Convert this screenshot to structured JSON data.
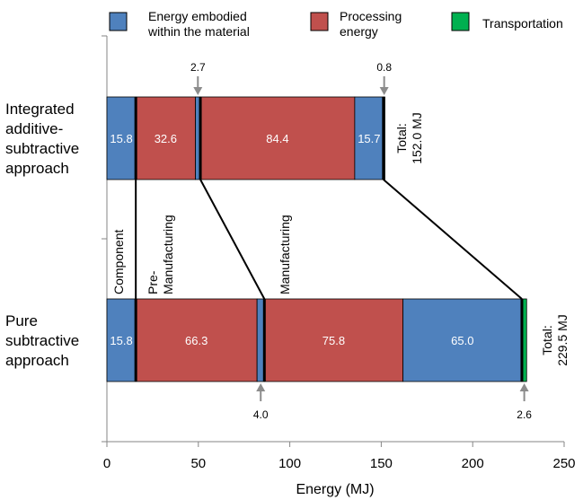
{
  "chart_data": {
    "type": "bar",
    "orientation": "horizontal",
    "stacked": true,
    "xlabel": "Energy (MJ)",
    "xlim": [
      0,
      250
    ],
    "xticks": [
      0,
      50,
      100,
      150,
      200,
      250
    ],
    "grid": false,
    "legend_position": "top",
    "legend": [
      {
        "label": "Energy embodied within the material",
        "lines": [
          "Energy embodied",
          "within the material"
        ],
        "color": "#4f81bd"
      },
      {
        "label": "Processing energy",
        "lines": [
          "Processing",
          "energy"
        ],
        "color": "#c0504d"
      },
      {
        "label": "Transportation",
        "lines": [
          "Transportation"
        ],
        "color": "#00b050"
      }
    ],
    "categories": [
      {
        "name": "Integrated additive-subtractive approach",
        "lines": [
          "Integrated",
          "additive-",
          "subtractive",
          "approach"
        ],
        "total_label": [
          "Total:",
          "152.0 MJ"
        ],
        "segments": [
          {
            "phase": "Component",
            "kind": "material",
            "value": 15.8,
            "label": "15.8"
          },
          {
            "phase": "Pre-Manufacturing",
            "kind": "processing",
            "value": 32.6,
            "label": "32.6"
          },
          {
            "phase": "Pre-Manufacturing",
            "kind": "material",
            "value": 2.7,
            "label": "",
            "callout": "2.7"
          },
          {
            "phase": "Manufacturing",
            "kind": "processing",
            "value": 84.4,
            "label": "84.4"
          },
          {
            "phase": "Manufacturing",
            "kind": "material",
            "value": 15.7,
            "label": "15.7"
          },
          {
            "phase": "Transportation",
            "kind": "transport",
            "value": 0.8,
            "label": "",
            "callout": "0.8"
          }
        ]
      },
      {
        "name": "Pure subtractive approach",
        "lines": [
          "Pure",
          "subtractive",
          "approach"
        ],
        "total_label": [
          "Total:",
          "229.5 MJ"
        ],
        "segments": [
          {
            "phase": "Component",
            "kind": "material",
            "value": 15.8,
            "label": "15.8"
          },
          {
            "phase": "Pre-Manufacturing",
            "kind": "processing",
            "value": 66.3,
            "label": "66.3"
          },
          {
            "phase": "Pre-Manufacturing",
            "kind": "material",
            "value": 4.0,
            "label": "",
            "callout": "4.0"
          },
          {
            "phase": "Manufacturing",
            "kind": "processing",
            "value": 75.8,
            "label": "75.8"
          },
          {
            "phase": "Manufacturing",
            "kind": "material",
            "value": 65.0,
            "label": "65.0"
          },
          {
            "phase": "Transportation",
            "kind": "transport",
            "value": 2.6,
            "label": "",
            "callout": "2.6"
          }
        ]
      }
    ],
    "phase_labels": [
      {
        "name": "Component",
        "lines": [
          "Component"
        ]
      },
      {
        "name": "Pre-Manufacturing",
        "lines": [
          "Pre-",
          "Manufacturing"
        ]
      },
      {
        "name": "Manufacturing",
        "lines": [
          "Manufacturing"
        ]
      }
    ],
    "colors": {
      "material": "#4f81bd",
      "processing": "#c0504d",
      "transport": "#00b050",
      "axis": "#868686",
      "callout_arrow": "#8c8c8c"
    }
  }
}
